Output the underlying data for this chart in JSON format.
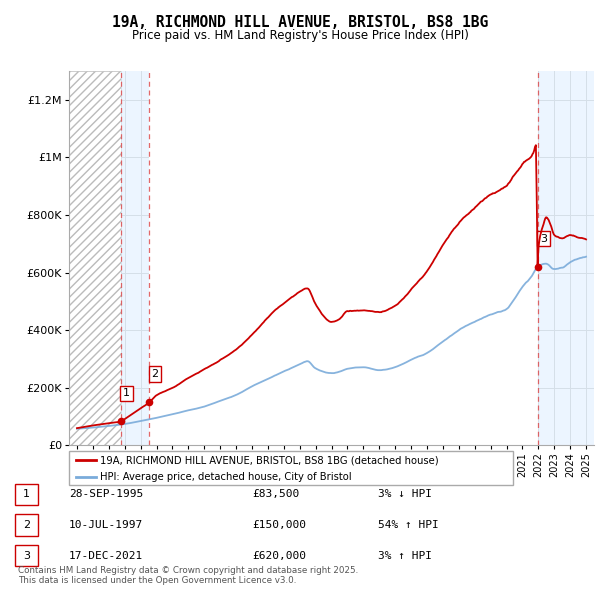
{
  "title": "19A, RICHMOND HILL AVENUE, BRISTOL, BS8 1BG",
  "subtitle": "Price paid vs. HM Land Registry's House Price Index (HPI)",
  "transactions": [
    {
      "num": 1,
      "date": "28-SEP-1995",
      "year": 1995.75,
      "price": 83500,
      "pct": "3%",
      "dir": "↓"
    },
    {
      "num": 2,
      "date": "10-JUL-1997",
      "year": 1997.53,
      "price": 150000,
      "pct": "54%",
      "dir": "↑"
    },
    {
      "num": 3,
      "date": "17-DEC-2021",
      "year": 2021.96,
      "price": 620000,
      "pct": "3%",
      "dir": "↑"
    }
  ],
  "legend_house": "19A, RICHMOND HILL AVENUE, BRISTOL, BS8 1BG (detached house)",
  "legend_hpi": "HPI: Average price, detached house, City of Bristol",
  "footer": "Contains HM Land Registry data © Crown copyright and database right 2025.\nThis data is licensed under the Open Government Licence v3.0.",
  "house_color": "#cc0000",
  "hpi_color": "#7aabda",
  "ylim": [
    0,
    1300000
  ],
  "yticks": [
    0,
    200000,
    400000,
    600000,
    800000,
    1000000,
    1200000
  ],
  "ytick_labels": [
    "£0",
    "£200K",
    "£400K",
    "£600K",
    "£800K",
    "£1M",
    "£1.2M"
  ],
  "xlim_start": 1992.5,
  "xlim_end": 2025.5,
  "xticks": [
    1993,
    1994,
    1995,
    1996,
    1997,
    1998,
    1999,
    2000,
    2001,
    2002,
    2003,
    2004,
    2005,
    2006,
    2007,
    2008,
    2009,
    2010,
    2011,
    2012,
    2013,
    2014,
    2015,
    2016,
    2017,
    2018,
    2019,
    2020,
    2021,
    2022,
    2023,
    2024,
    2025
  ]
}
